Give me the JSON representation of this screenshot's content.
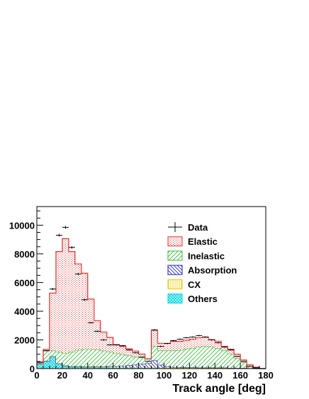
{
  "chart_data": {
    "type": "bar",
    "title": "",
    "xlabel": "Track angle [deg]",
    "ylabel": "",
    "xlim": [
      0,
      180
    ],
    "ylim": [
      0,
      11300
    ],
    "bin_width": 5,
    "x_ticks": [
      0,
      20,
      40,
      60,
      80,
      100,
      120,
      140,
      160,
      180
    ],
    "y_ticks": [
      0,
      2000,
      4000,
      6000,
      8000,
      10000
    ],
    "grid": false,
    "legend_position": "top-right",
    "stacked": true,
    "bin_edges_start": [
      0,
      5,
      10,
      15,
      20,
      25,
      30,
      35,
      40,
      45,
      50,
      55,
      60,
      65,
      70,
      75,
      80,
      85,
      90,
      95,
      100,
      105,
      110,
      115,
      120,
      125,
      130,
      135,
      140,
      145,
      150,
      155,
      160,
      165,
      170,
      175
    ],
    "series": [
      {
        "name": "Others",
        "color": "#00d8e0",
        "values": [
          300,
          500,
          800,
          300,
          150,
          100,
          100,
          80,
          80,
          60,
          60,
          60,
          50,
          50,
          50,
          50,
          50,
          50,
          50,
          40,
          40,
          30,
          30,
          30,
          30,
          30,
          30,
          30,
          30,
          30,
          20,
          20,
          20,
          10,
          10,
          0
        ]
      },
      {
        "name": "CX",
        "color": "#e8c800",
        "values": [
          10,
          20,
          30,
          30,
          30,
          30,
          30,
          30,
          30,
          30,
          30,
          30,
          20,
          20,
          20,
          20,
          20,
          20,
          20,
          20,
          20,
          20,
          20,
          20,
          20,
          20,
          20,
          20,
          20,
          20,
          10,
          10,
          10,
          10,
          10,
          0
        ]
      },
      {
        "name": "Absorption",
        "color": "#2020d0",
        "values": [
          10,
          20,
          30,
          30,
          30,
          30,
          30,
          40,
          40,
          50,
          60,
          80,
          100,
          130,
          160,
          200,
          250,
          300,
          500,
          200,
          100,
          60,
          40,
          30,
          30,
          20,
          20,
          20,
          20,
          20,
          10,
          10,
          10,
          10,
          0,
          0
        ]
      },
      {
        "name": "Inelastic",
        "color": "#30c030",
        "values": [
          100,
          700,
          400,
          800,
          850,
          1000,
          1140,
          1200,
          1200,
          1200,
          1100,
          1000,
          900,
          800,
          700,
          550,
          450,
          250,
          1000,
          1000,
          1100,
          1150,
          1200,
          1300,
          1350,
          1450,
          1500,
          1450,
          1350,
          1200,
          1000,
          700,
          400,
          150,
          50,
          0
        ]
      },
      {
        "name": "Elastic",
        "color": "#e83030",
        "values": [
          50,
          100,
          4000,
          7000,
          8000,
          7000,
          6000,
          5300,
          3500,
          2000,
          1300,
          1000,
          600,
          550,
          450,
          400,
          240,
          80,
          1100,
          500,
          500,
          640,
          610,
          600,
          620,
          630,
          630,
          500,
          490,
          280,
          310,
          260,
          160,
          80,
          30,
          0
        ]
      }
    ],
    "data_points": {
      "name": "Data",
      "x": [
        2.5,
        7.5,
        12.5,
        17.5,
        22.5,
        27.5,
        32.5,
        37.5,
        42.5,
        47.5,
        52.5,
        57.5,
        62.5,
        67.5,
        72.5,
        77.5,
        82.5,
        87.5,
        92.5,
        97.5,
        102.5,
        107.5,
        112.5,
        117.5,
        122.5,
        127.5,
        132.5,
        137.5,
        142.5,
        147.5,
        152.5,
        157.5,
        162.5,
        167.5,
        172.5
      ],
      "y": [
        400,
        1250,
        5550,
        9300,
        9850,
        8450,
        6600,
        4800,
        3200,
        2600,
        2000,
        1650,
        1650,
        1600,
        1300,
        1100,
        800,
        500,
        2700,
        1550,
        1750,
        1950,
        2050,
        2150,
        2200,
        2300,
        2200,
        2000,
        1800,
        1500,
        1300,
        850,
        500,
        150,
        50
      ]
    }
  },
  "legend": [
    {
      "label": "Data",
      "icon": "data-marker-icon"
    },
    {
      "label": "Elastic",
      "icon": "hatch-elastic-icon"
    },
    {
      "label": "Inelastic",
      "icon": "hatch-inelastic-icon"
    },
    {
      "label": "Absorption",
      "icon": "hatch-absorption-icon"
    },
    {
      "label": "CX",
      "icon": "hatch-cx-icon"
    },
    {
      "label": "Others",
      "icon": "hatch-others-icon"
    }
  ]
}
